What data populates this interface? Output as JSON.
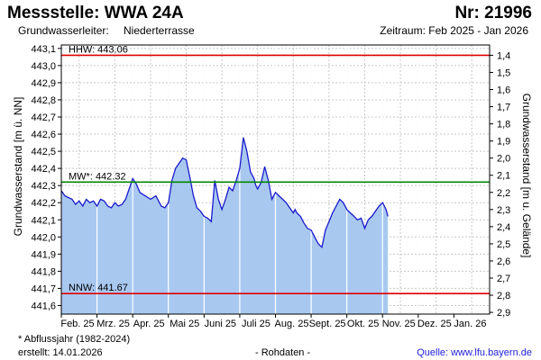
{
  "header": {
    "title": "Messstelle: WWA 24A",
    "number": "Nr: 21996",
    "aquifer_label": "Grundwasserleiter:",
    "aquifer_value": "Niederterrasse",
    "period": "Zeitraum: Feb 2025 - Jan 2026"
  },
  "footer": {
    "note": "* Abflussjahr (1982-2024)",
    "created": "erstellt:  14.01.2026",
    "raw": "- Rohdaten -",
    "source": "Quelle: www.lfu.bayern.de"
  },
  "colors": {
    "area_fill": "#a8c8f0",
    "line": "#1a1acc",
    "hhw": "#e00000",
    "nnw": "#e00000",
    "mw": "#008800",
    "grid": "#c8c8c8"
  },
  "chart_data": {
    "type": "area",
    "ylabel": "Grundwasserstand [m ü. NN]",
    "ylabel_right": "Grundwasserstand [m u. Gelände]",
    "ylim": [
      441.55,
      443.12
    ],
    "y_ticks": [
      "443,1",
      "443,0",
      "442,9",
      "442,8",
      "442,7",
      "442,6",
      "442,5",
      "442,4",
      "442,3",
      "442,2",
      "442,1",
      "442,0",
      "441,9",
      "441,8",
      "441,7",
      "441,6"
    ],
    "y_tick_values": [
      443.1,
      443.0,
      442.9,
      442.8,
      442.7,
      442.6,
      442.5,
      442.4,
      442.3,
      442.2,
      442.1,
      442.0,
      441.9,
      441.8,
      441.7,
      441.6
    ],
    "y2_ticks": [
      "1,4",
      "1,5",
      "1,6",
      "1,7",
      "1,8",
      "1,9",
      "2,0",
      "2,1",
      "2,2",
      "2,3",
      "2,4",
      "2,5",
      "2,6",
      "2,7",
      "2,8",
      "2,9"
    ],
    "x_ticks": [
      "Feb. 25",
      "Mrz. 25",
      "Apr. 25",
      "Mai 25",
      "Juni 25",
      "Juli 25",
      "Aug. 25",
      "Sept. 25",
      "Okt. 25",
      "Nov. 25",
      "Dez. 25",
      "Jan. 26"
    ],
    "xlim": [
      0,
      12
    ],
    "grid": true,
    "reference_lines": [
      {
        "label": "HHW: 443.06",
        "value": 443.06,
        "color": "#e00000"
      },
      {
        "label": "MW*: 442.32",
        "value": 442.32,
        "color": "#008800"
      },
      {
        "label": "NNW: 441.67",
        "value": 441.67,
        "color": "#e00000"
      }
    ],
    "series": [
      {
        "x": [
          0.0,
          0.1,
          0.2,
          0.3,
          0.4,
          0.5,
          0.6,
          0.7,
          0.8,
          0.9,
          1.0,
          1.1,
          1.2,
          1.3,
          1.4,
          1.5,
          1.6,
          1.7,
          1.8,
          1.9,
          2.0,
          2.1,
          2.2,
          2.35,
          2.5,
          2.65,
          2.8,
          2.9,
          3.0,
          3.1,
          3.2,
          3.3,
          3.4,
          3.5,
          3.55,
          3.6,
          3.7,
          3.8,
          3.9,
          4.0,
          4.1,
          4.2,
          4.3,
          4.4,
          4.5,
          4.6,
          4.7,
          4.8,
          4.9,
          5.0,
          5.1,
          5.2,
          5.3,
          5.4,
          5.45,
          5.5,
          5.6,
          5.7,
          5.8,
          5.9,
          6.0,
          6.1,
          6.2,
          6.3,
          6.4,
          6.5,
          6.55,
          6.6,
          6.7,
          6.8,
          6.9,
          7.0,
          7.1,
          7.2,
          7.3,
          7.4,
          7.5,
          7.6,
          7.7,
          7.8,
          7.9,
          8.0,
          8.1,
          8.2,
          8.3,
          8.4,
          8.45,
          8.5,
          8.6,
          8.7,
          8.8,
          8.9,
          9.0,
          9.1,
          9.15
        ],
        "values": [
          442.27,
          442.24,
          442.23,
          442.22,
          442.19,
          442.21,
          442.18,
          442.22,
          442.2,
          442.21,
          442.18,
          442.22,
          442.21,
          442.18,
          442.17,
          442.2,
          442.18,
          442.19,
          442.22,
          442.28,
          442.34,
          442.31,
          442.26,
          442.24,
          442.22,
          442.24,
          442.18,
          442.17,
          442.2,
          442.33,
          442.4,
          442.43,
          442.46,
          442.45,
          442.4,
          442.35,
          442.24,
          442.17,
          442.15,
          442.12,
          442.11,
          442.09,
          442.33,
          442.22,
          442.16,
          442.22,
          442.29,
          442.27,
          442.33,
          442.4,
          442.58,
          442.5,
          442.38,
          442.34,
          442.3,
          442.28,
          442.32,
          442.41,
          442.33,
          442.22,
          442.26,
          442.24,
          442.22,
          442.2,
          442.17,
          442.14,
          442.16,
          442.14,
          442.12,
          442.08,
          442.05,
          442.04,
          442.0,
          441.96,
          441.94,
          442.04,
          442.09,
          442.14,
          442.18,
          442.22,
          442.2,
          442.16,
          442.14,
          442.12,
          442.1,
          442.11,
          442.08,
          442.05,
          442.1,
          442.12,
          442.15,
          442.18,
          442.2,
          442.16,
          442.12
        ]
      }
    ]
  }
}
